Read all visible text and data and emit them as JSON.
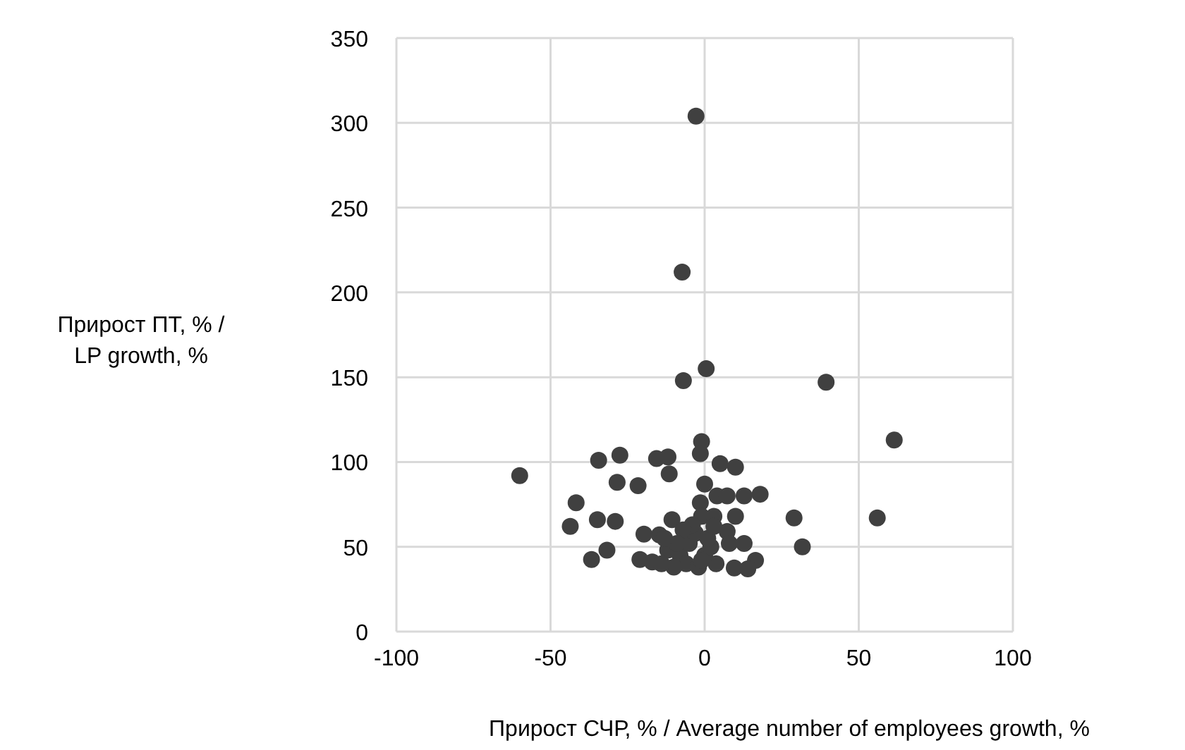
{
  "chart_data": {
    "type": "scatter",
    "xlabel": "Прирост СЧР, % / Average number of employees growth, %",
    "ylabel": "Прирост ПТ, % /\nLP growth, %",
    "xlim": [
      -100,
      100
    ],
    "ylim": [
      0,
      350
    ],
    "xticks": [
      -100,
      -50,
      0,
      50,
      100
    ],
    "yticks": [
      0,
      50,
      100,
      150,
      200,
      250,
      300,
      350
    ],
    "grid": true,
    "marker": "circle",
    "series": [
      {
        "color": "#404040",
        "x": [
          -2.8,
          -7.3,
          0.5,
          -6.9,
          39.4,
          61.5,
          56,
          29,
          31.7,
          -60,
          -41.7,
          -43.6,
          -1,
          -1.4,
          -34.4,
          -27.5,
          -15.6,
          -11.9,
          -11.5,
          5,
          10,
          -28.4,
          -21.6,
          0,
          -1.4,
          4,
          7.3,
          12.8,
          18,
          -34.8,
          -29,
          -10.6,
          -1,
          3,
          10,
          -19.7,
          -14.7,
          7.3,
          12.8,
          8,
          -31.7,
          -36.7,
          -21,
          -17,
          16.5,
          14,
          9.6,
          3.7,
          -12,
          -8,
          -5,
          -3,
          -6,
          -10,
          -2,
          0,
          2,
          -14,
          -4,
          1,
          -7,
          3,
          -1,
          -9,
          -13
        ],
        "values": [
          304,
          212,
          155,
          148,
          147,
          113,
          67,
          67,
          50,
          92,
          76,
          62,
          112,
          105,
          101,
          104,
          102,
          103,
          93,
          99,
          97,
          88,
          86,
          87,
          76,
          80,
          80,
          80,
          81,
          66,
          65,
          66,
          68,
          68,
          68,
          57.5,
          57,
          59,
          52,
          52,
          48,
          42.5,
          42.5,
          41,
          42,
          37,
          37.5,
          40,
          48,
          45,
          52,
          58,
          40,
          38,
          38,
          45,
          50,
          40,
          63,
          55,
          60,
          62,
          42,
          52,
          55
        ]
      }
    ]
  }
}
